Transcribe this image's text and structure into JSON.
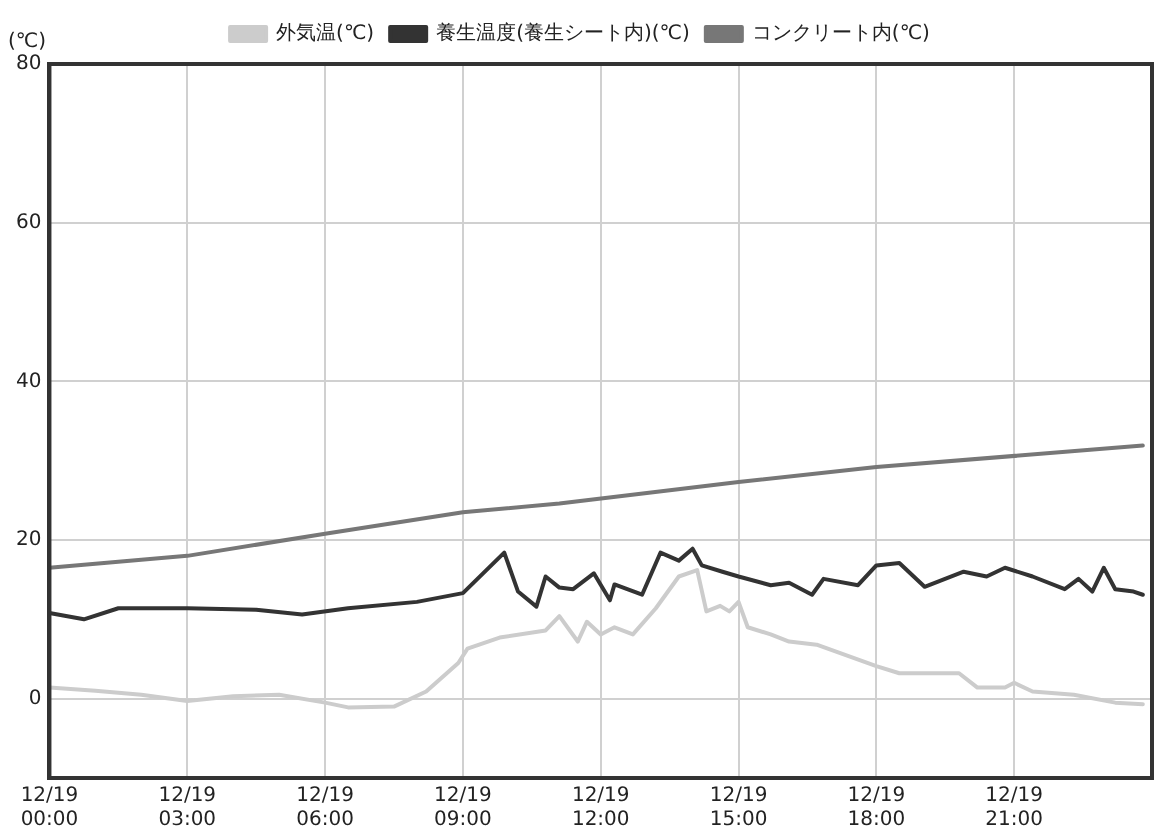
{
  "chart_data": {
    "type": "line",
    "ylabel": "(℃)",
    "legend": "top",
    "grid": true,
    "marker": "none",
    "line_style": "solid",
    "xlim": [
      "--12-19T00:00",
      "--12-20T00:00"
    ],
    "ylim": [
      -10,
      80
    ],
    "yticks": [
      0,
      20,
      40,
      60,
      80
    ],
    "xticks": [
      {
        "value": "--12-19T00:00",
        "label": "12/19\n00:00"
      },
      {
        "value": "--12-19T03:00",
        "label": "12/19\n03:00"
      },
      {
        "value": "--12-19T06:00",
        "label": "12/19\n06:00"
      },
      {
        "value": "--12-19T09:00",
        "label": "12/19\n09:00"
      },
      {
        "value": "--12-19T12:00",
        "label": "12/19\n12:00"
      },
      {
        "value": "--12-19T15:00",
        "label": "12/19\n15:00"
      },
      {
        "value": "--12-19T18:00",
        "label": "12/19\n18:00"
      },
      {
        "value": "--12-19T21:00",
        "label": "12/19\n21:00"
      }
    ],
    "series": [
      {
        "name": "外気温(℃)",
        "color": "#cccccc",
        "x": [
          "--12-19T00:00",
          "--12-19T01:00",
          "--12-19T02:00",
          "--12-19T03:00",
          "--12-19T04:00",
          "--12-19T05:00",
          "--12-19T06:00",
          "--12-19T06:30",
          "--12-19T07:30",
          "--12-19T08:12",
          "--12-19T08:54",
          "--12-19T09:06",
          "--12-19T09:48",
          "--12-19T10:48",
          "--12-19T11:06",
          "--12-19T11:30",
          "--12-19T11:42",
          "--12-19T12:00",
          "--12-19T12:18",
          "--12-19T12:42",
          "--12-19T13:12",
          "--12-19T13:42",
          "--12-19T14:06",
          "--12-19T14:18",
          "--12-19T14:36",
          "--12-19T14:48",
          "--12-19T15:00",
          "--12-19T15:12",
          "--12-19T15:42",
          "--12-19T16:06",
          "--12-19T16:42",
          "--12-19T18:00",
          "--12-19T18:30",
          "--12-19T19:06",
          "--12-19T19:48",
          "--12-19T20:12",
          "--12-19T20:48",
          "--12-19T21:00",
          "--12-19T21:24",
          "--12-19T22:18",
          "--12-19T23:12",
          "--12-19T23:48"
        ],
        "values": [
          1.4,
          1.0,
          0.5,
          -0.3,
          0.3,
          0.5,
          -0.5,
          -1.1,
          -1.0,
          0.9,
          4.5,
          6.3,
          7.7,
          8.6,
          10.4,
          7.2,
          9.7,
          8.1,
          9.0,
          8.1,
          11.4,
          15.4,
          16.2,
          11.0,
          11.7,
          11.0,
          12.2,
          9.0,
          8.1,
          7.2,
          6.8,
          4.1,
          3.2,
          3.2,
          3.2,
          1.4,
          1.4,
          2.0,
          0.9,
          0.5,
          -0.5,
          -0.7
        ]
      },
      {
        "name": "養生温度(養生シート内)(℃)",
        "color": "#333333",
        "x": [
          "--12-19T00:00",
          "--12-19T00:45",
          "--12-19T01:30",
          "--12-19T03:00",
          "--12-19T04:30",
          "--12-19T05:30",
          "--12-19T06:30",
          "--12-19T08:00",
          "--12-19T09:00",
          "--12-19T09:54",
          "--12-19T10:12",
          "--12-19T10:36",
          "--12-19T10:48",
          "--12-19T11:06",
          "--12-19T11:24",
          "--12-19T11:51",
          "--12-19T12:12",
          "--12-19T12:18",
          "--12-19T12:54",
          "--12-19T13:18",
          "--12-19T13:42",
          "--12-19T14:00",
          "--12-19T14:12",
          "--12-19T14:39",
          "--12-19T15:00",
          "--12-19T15:42",
          "--12-19T16:06",
          "--12-19T16:36",
          "--12-19T16:51",
          "--12-19T17:36",
          "--12-19T18:00",
          "--12-19T18:30",
          "--12-19T19:03",
          "--12-19T19:54",
          "--12-19T20:24",
          "--12-19T20:48",
          "--12-19T21:24",
          "--12-19T22:06",
          "--12-19T22:24",
          "--12-19T22:42",
          "--12-19T22:57",
          "--12-19T23:12",
          "--12-19T23:36",
          "--12-19T23:48"
        ],
        "values": [
          10.8,
          10.0,
          11.4,
          11.4,
          11.2,
          10.6,
          11.4,
          12.2,
          13.3,
          18.4,
          13.5,
          11.6,
          15.4,
          14.0,
          13.8,
          15.8,
          12.4,
          14.4,
          13.1,
          18.4,
          17.4,
          18.9,
          16.8,
          16.0,
          15.4,
          14.3,
          14.6,
          13.1,
          15.1,
          14.3,
          16.8,
          17.1,
          14.1,
          16.0,
          15.4,
          16.5,
          15.4,
          13.8,
          15.1,
          13.5,
          16.5,
          13.8,
          13.5,
          13.1
        ]
      },
      {
        "name": "コンクリート内(℃)",
        "color": "#777777",
        "x": [
          "--12-19T00:00",
          "--12-19T03:00",
          "--12-19T06:00",
          "--12-19T09:00",
          "--12-19T11:06",
          "--12-19T15:00",
          "--12-19T18:00",
          "--12-19T23:48"
        ],
        "values": [
          16.5,
          18.0,
          20.8,
          23.5,
          24.6,
          27.3,
          29.2,
          31.9
        ]
      }
    ]
  }
}
